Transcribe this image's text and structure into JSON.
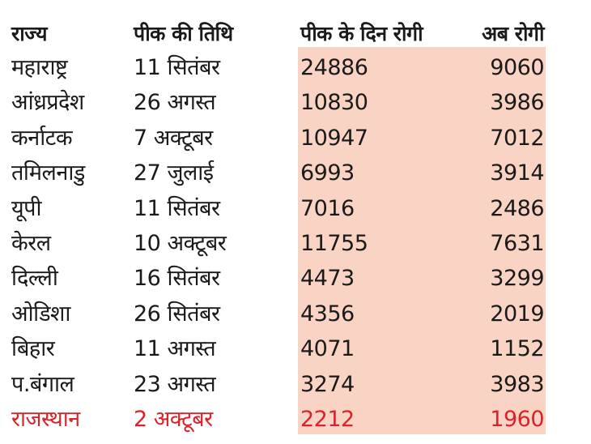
{
  "headers": [
    "राज्य",
    "पीक की तिथि",
    "पीक के दिन रोगी",
    "अब रोगी"
  ],
  "highlight_color": "#d8232a",
  "shade_color": "#f9d3c3",
  "rows": [
    {
      "state": "महाराष्ट्र",
      "peak_date": "11 सितंबर",
      "peak_patients": "24886",
      "current_patients": "9060"
    },
    {
      "state": "आंध्रप्रदेश",
      "peak_date": "26 अगस्त",
      "peak_patients": "10830",
      "current_patients": "3986"
    },
    {
      "state": "कर्नाटक",
      "peak_date": "7 अक्टूबर",
      "peak_patients": "10947",
      "current_patients": "7012"
    },
    {
      "state": "तमिलनाडु",
      "peak_date": "27 जुलाई",
      "peak_patients": "6993",
      "current_patients": "3914"
    },
    {
      "state": "यूपी",
      "peak_date": "11 सितंबर",
      "peak_patients": "7016",
      "current_patients": "2486"
    },
    {
      "state": "केरल",
      "peak_date": "10 अक्टूबर",
      "peak_patients": "11755",
      "current_patients": "7631"
    },
    {
      "state": "दिल्ली",
      "peak_date": "16 सितंबर",
      "peak_patients": "4473",
      "current_patients": "3299"
    },
    {
      "state": "ओडिशा",
      "peak_date": "26 सितंबर",
      "peak_patients": "4356",
      "current_patients": "2019"
    },
    {
      "state": "बिहार",
      "peak_date": "11 अगस्त",
      "peak_patients": "4071",
      "current_patients": "1152"
    },
    {
      "state": "प.बंगाल",
      "peak_date": "23 अगस्त",
      "peak_patients": "3274",
      "current_patients": "3983"
    },
    {
      "state": "राजस्थान",
      "peak_date": "2 अक्टूबर",
      "peak_patients": "2212",
      "current_patients": "1960"
    }
  ]
}
